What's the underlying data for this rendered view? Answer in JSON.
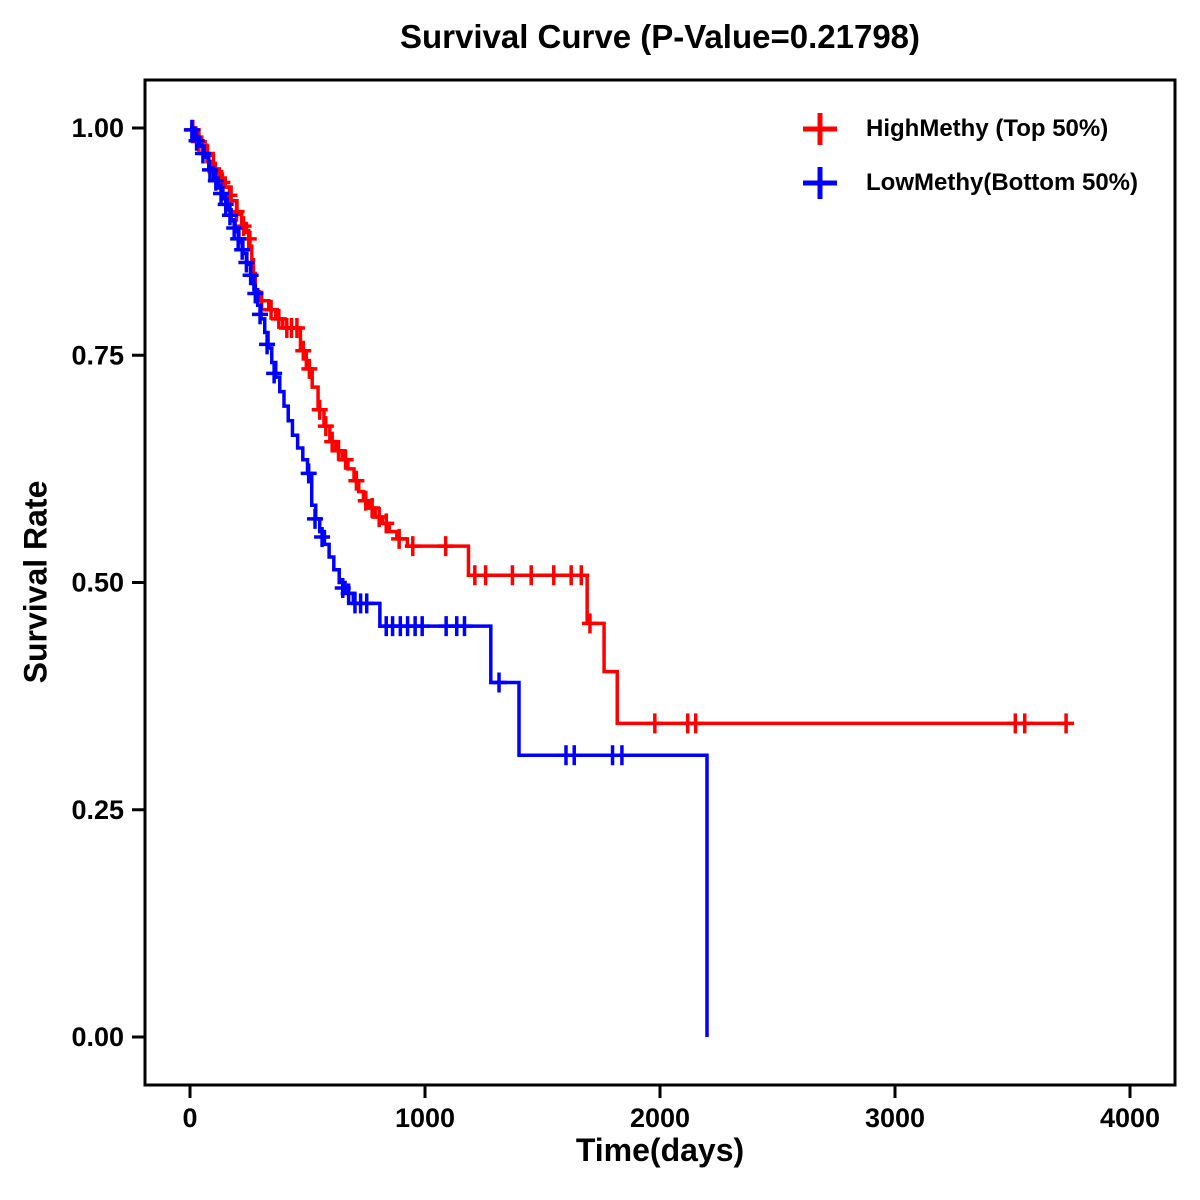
{
  "chart_data": {
    "type": "line",
    "subtype": "kaplan-meier-step-survival",
    "title": "Survival Curve (P-Value=0.21798)",
    "p_value": "0.21798",
    "xlabel": "Time(days)",
    "ylabel": "Survival Rate",
    "xlim": [
      0,
      4000
    ],
    "ylim": [
      0.0,
      1.0
    ],
    "x_ticks": [
      0,
      1000,
      2000,
      3000,
      4000
    ],
    "x_tick_labels": [
      "0",
      "1000",
      "2000",
      "3000",
      "4000"
    ],
    "y_ticks": [
      0.0,
      0.25,
      0.5,
      0.75,
      1.0
    ],
    "y_tick_labels": [
      "0.00",
      "0.25",
      "0.50",
      "0.75",
      "1.00"
    ],
    "grid": false,
    "legend_position": "top-right",
    "frame_color": "#000000",
    "series": [
      {
        "id": "highmethy",
        "name": "HighMethy (Top 50%)",
        "color": "#FF0000",
        "steps": [
          [
            0,
            1.0
          ],
          [
            25,
            0.99
          ],
          [
            50,
            0.98
          ],
          [
            75,
            0.97
          ],
          [
            100,
            0.955
          ],
          [
            125,
            0.945
          ],
          [
            150,
            0.935
          ],
          [
            175,
            0.92
          ],
          [
            200,
            0.905
          ],
          [
            220,
            0.895
          ],
          [
            240,
            0.885
          ],
          [
            255,
            0.87
          ],
          [
            263,
            0.855
          ],
          [
            270,
            0.84
          ],
          [
            278,
            0.82
          ],
          [
            295,
            0.81
          ],
          [
            335,
            0.8
          ],
          [
            365,
            0.79
          ],
          [
            395,
            0.78
          ],
          [
            470,
            0.755
          ],
          [
            495,
            0.735
          ],
          [
            520,
            0.715
          ],
          [
            545,
            0.69
          ],
          [
            570,
            0.672
          ],
          [
            595,
            0.655
          ],
          [
            620,
            0.645
          ],
          [
            648,
            0.635
          ],
          [
            672,
            0.625
          ],
          [
            698,
            0.612
          ],
          [
            718,
            0.6
          ],
          [
            738,
            0.59
          ],
          [
            762,
            0.582
          ],
          [
            788,
            0.572
          ],
          [
            818,
            0.565
          ],
          [
            848,
            0.556
          ],
          [
            880,
            0.548
          ],
          [
            925,
            0.54
          ],
          [
            1185,
            0.508
          ],
          [
            1690,
            0.455
          ],
          [
            1762,
            0.402
          ],
          [
            1818,
            0.345
          ],
          [
            3730,
            0.345
          ]
        ],
        "censors": [
          [
            12,
            0.998
          ],
          [
            38,
            0.985
          ],
          [
            72,
            0.972
          ],
          [
            108,
            0.952
          ],
          [
            138,
            0.94
          ],
          [
            168,
            0.926
          ],
          [
            198,
            0.908
          ],
          [
            228,
            0.892
          ],
          [
            250,
            0.878
          ],
          [
            305,
            0.81
          ],
          [
            345,
            0.8
          ],
          [
            378,
            0.79
          ],
          [
            412,
            0.78
          ],
          [
            432,
            0.78
          ],
          [
            455,
            0.78
          ],
          [
            482,
            0.755
          ],
          [
            508,
            0.735
          ],
          [
            552,
            0.69
          ],
          [
            578,
            0.672
          ],
          [
            605,
            0.655
          ],
          [
            632,
            0.645
          ],
          [
            662,
            0.635
          ],
          [
            708,
            0.612
          ],
          [
            748,
            0.59
          ],
          [
            775,
            0.582
          ],
          [
            805,
            0.572
          ],
          [
            835,
            0.565
          ],
          [
            890,
            0.548
          ],
          [
            948,
            0.54
          ],
          [
            1088,
            0.54
          ],
          [
            1212,
            0.508
          ],
          [
            1258,
            0.508
          ],
          [
            1372,
            0.508
          ],
          [
            1452,
            0.508
          ],
          [
            1548,
            0.508
          ],
          [
            1622,
            0.508
          ],
          [
            1665,
            0.508
          ],
          [
            1702,
            0.455
          ],
          [
            1978,
            0.345
          ],
          [
            2118,
            0.345
          ],
          [
            2152,
            0.345
          ],
          [
            3512,
            0.345
          ],
          [
            3552,
            0.345
          ],
          [
            3728,
            0.345
          ]
        ]
      },
      {
        "id": "lowmethy",
        "name": "LowMethy(Bottom 50%)",
        "color": "#0000FF",
        "steps": [
          [
            0,
            1.0
          ],
          [
            20,
            0.99
          ],
          [
            40,
            0.98
          ],
          [
            60,
            0.968
          ],
          [
            80,
            0.956
          ],
          [
            100,
            0.945
          ],
          [
            120,
            0.934
          ],
          [
            140,
            0.922
          ],
          [
            158,
            0.91
          ],
          [
            175,
            0.898
          ],
          [
            192,
            0.886
          ],
          [
            208,
            0.874
          ],
          [
            225,
            0.862
          ],
          [
            242,
            0.85
          ],
          [
            258,
            0.838
          ],
          [
            272,
            0.822
          ],
          [
            288,
            0.805
          ],
          [
            302,
            0.79
          ],
          [
            318,
            0.775
          ],
          [
            332,
            0.758
          ],
          [
            348,
            0.742
          ],
          [
            365,
            0.726
          ],
          [
            382,
            0.71
          ],
          [
            400,
            0.694
          ],
          [
            418,
            0.678
          ],
          [
            436,
            0.662
          ],
          [
            458,
            0.648
          ],
          [
            480,
            0.635
          ],
          [
            500,
            0.62
          ],
          [
            518,
            0.585
          ],
          [
            535,
            0.57
          ],
          [
            552,
            0.556
          ],
          [
            572,
            0.542
          ],
          [
            592,
            0.528
          ],
          [
            612,
            0.514
          ],
          [
            635,
            0.5
          ],
          [
            660,
            0.488
          ],
          [
            695,
            0.477
          ],
          [
            808,
            0.452
          ],
          [
            1280,
            0.39
          ],
          [
            1400,
            0.31
          ],
          [
            2200,
            0.0
          ]
        ],
        "censors": [
          [
            8,
            0.998
          ],
          [
            28,
            0.986
          ],
          [
            55,
            0.972
          ],
          [
            85,
            0.954
          ],
          [
            110,
            0.942
          ],
          [
            132,
            0.928
          ],
          [
            152,
            0.916
          ],
          [
            170,
            0.904
          ],
          [
            188,
            0.89
          ],
          [
            205,
            0.878
          ],
          [
            222,
            0.866
          ],
          [
            240,
            0.852
          ],
          [
            258,
            0.838
          ],
          [
            278,
            0.818
          ],
          [
            298,
            0.795
          ],
          [
            328,
            0.762
          ],
          [
            358,
            0.73
          ],
          [
            505,
            0.62
          ],
          [
            532,
            0.57
          ],
          [
            562,
            0.55
          ],
          [
            650,
            0.494
          ],
          [
            675,
            0.488
          ],
          [
            702,
            0.477
          ],
          [
            726,
            0.477
          ],
          [
            752,
            0.477
          ],
          [
            835,
            0.452
          ],
          [
            862,
            0.452
          ],
          [
            895,
            0.452
          ],
          [
            926,
            0.452
          ],
          [
            958,
            0.452
          ],
          [
            988,
            0.452
          ],
          [
            1090,
            0.452
          ],
          [
            1135,
            0.452
          ],
          [
            1168,
            0.452
          ],
          [
            1315,
            0.39
          ],
          [
            1600,
            0.31
          ],
          [
            1635,
            0.31
          ],
          [
            1798,
            0.31
          ],
          [
            1838,
            0.31
          ]
        ]
      }
    ]
  }
}
